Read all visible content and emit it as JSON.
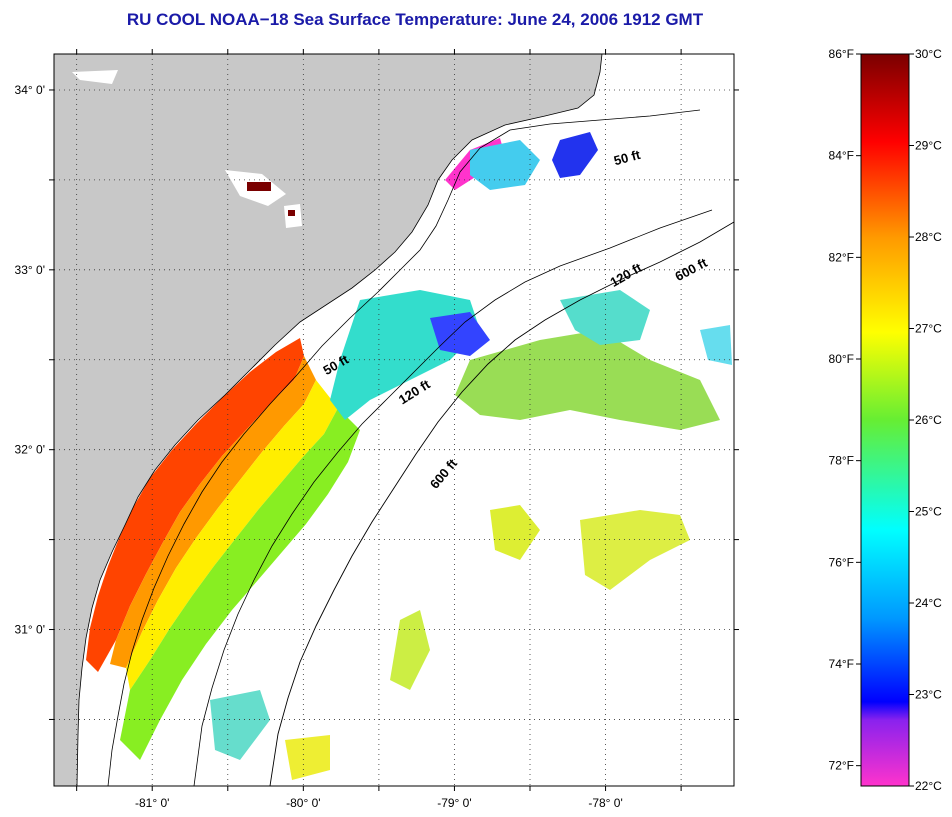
{
  "title": "RU COOL  NOAA−18  Sea Surface Temperature:  June 24, 2006 1912 GMT",
  "map": {
    "lon_range": [
      -81.65,
      -77.15
    ],
    "lat_range": [
      30.13,
      34.2
    ],
    "lon_ticks": [
      {
        "value": -81,
        "label": "-81° 0'"
      },
      {
        "value": -80,
        "label": "-80° 0'"
      },
      {
        "value": -79,
        "label": "-79° 0'"
      },
      {
        "value": -78,
        "label": "-78° 0'"
      }
    ],
    "lat_ticks": [
      {
        "value": 34,
        "label": "34° 0'"
      },
      {
        "value": 33,
        "label": "33° 0'"
      },
      {
        "value": 32,
        "label": "32° 0'"
      },
      {
        "value": 31,
        "label": "31° 0'"
      }
    ],
    "grid": true,
    "colors": {
      "land": "#c8c8c8",
      "ocean": "#ffffff",
      "contour": "#000000"
    },
    "contour_labels": [
      {
        "text": "50 ft",
        "lon": -79.77,
        "lat": 32.45,
        "angle": -30
      },
      {
        "text": "120 ft",
        "lon": -79.25,
        "lat": 32.3,
        "angle": -32
      },
      {
        "text": "600 ft",
        "lon": -79.05,
        "lat": 31.85,
        "angle": -50
      },
      {
        "text": "120 ft",
        "lon": -77.85,
        "lat": 32.95,
        "angle": -30
      },
      {
        "text": "600 ft",
        "lon": -77.42,
        "lat": 32.98,
        "angle": -28
      },
      {
        "text": "50 ft",
        "lon": -77.85,
        "lat": 33.6,
        "angle": -15
      }
    ]
  },
  "colorbar": {
    "celsius_labels": [
      "30°C",
      "29°C",
      "28°C",
      "27°C",
      "26°C",
      "25°C",
      "24°C",
      "23°C",
      "22°C"
    ],
    "fahrenheit_labels": [
      "86°F",
      "84°F",
      "82°F",
      "80°F",
      "78°F",
      "76°F",
      "74°F",
      "72°F"
    ],
    "celsius_range": [
      22,
      30
    ],
    "stops": [
      {
        "t": 0.0,
        "color": "#ff33cc"
      },
      {
        "t": 0.09,
        "color": "#8a22ee"
      },
      {
        "t": 0.115,
        "color": "#0000ff"
      },
      {
        "t": 0.23,
        "color": "#0099ff"
      },
      {
        "t": 0.35,
        "color": "#00ffff"
      },
      {
        "t": 0.5,
        "color": "#66ee33"
      },
      {
        "t": 0.62,
        "color": "#ffff00"
      },
      {
        "t": 0.75,
        "color": "#ff9900"
      },
      {
        "t": 0.88,
        "color": "#ff0000"
      },
      {
        "t": 1.0,
        "color": "#7a0000"
      }
    ]
  }
}
